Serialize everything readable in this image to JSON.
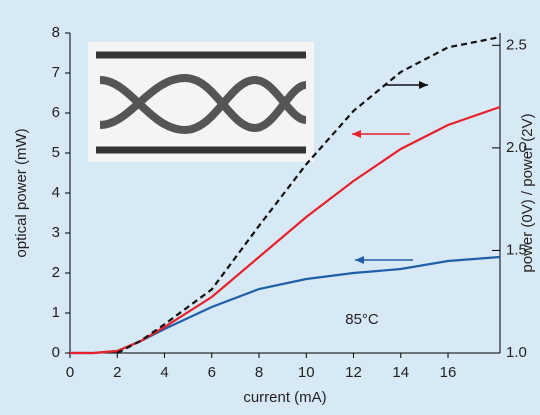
{
  "chart_data": {
    "type": "line",
    "x_label": "current (mA)",
    "y_label": "optical power (mW)",
    "y2_label": "power (0V) / power (2V)",
    "annotation": "85°C",
    "x": [
      0,
      1,
      2,
      3,
      4,
      6,
      8,
      10,
      12,
      14,
      16,
      18.2
    ],
    "xlim": [
      0,
      18.2
    ],
    "xticks": [
      0,
      2,
      4,
      6,
      8,
      10,
      12,
      14,
      16
    ],
    "ylim": [
      0,
      8
    ],
    "yticks": [
      0,
      1,
      2,
      3,
      4,
      5,
      6,
      7,
      8
    ],
    "y2lim": [
      1.0,
      2.56
    ],
    "y2ticks": [
      {
        "value": 1,
        "label": "1.0"
      },
      1.5,
      {
        "value": 2,
        "label": "2.0"
      },
      2.5
    ],
    "series": [
      {
        "color": "#1f5fa8",
        "dash": false,
        "values": [
          0,
          0,
          0.05,
          0.3,
          0.6,
          1.15,
          1.6,
          1.85,
          2.0,
          2.1,
          2.3,
          2.4
        ]
      },
      {
        "color": "#e8202a",
        "dash": false,
        "values": [
          0,
          0,
          0.05,
          0.3,
          0.65,
          1.4,
          2.4,
          3.4,
          4.3,
          5.1,
          5.7,
          6.15
        ]
      },
      {
        "color": "#111111",
        "dash": true,
        "axis": "y2",
        "values": [
          null,
          null,
          1.0,
          1.06,
          1.14,
          1.31,
          1.62,
          1.92,
          2.18,
          2.37,
          2.49,
          2.54
        ]
      }
    ]
  }
}
